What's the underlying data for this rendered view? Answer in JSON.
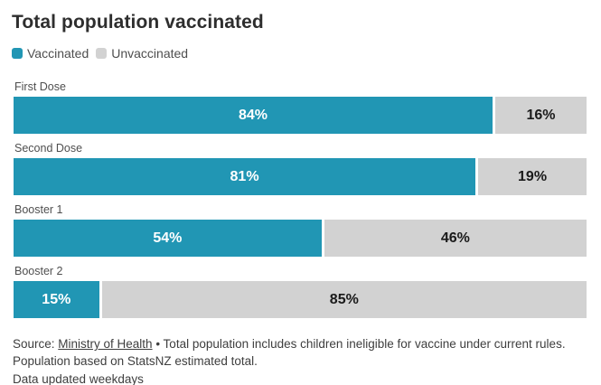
{
  "header": {
    "title": "Total population vaccinated"
  },
  "legend": {
    "items": [
      {
        "label": "Vaccinated",
        "color": "#2196b4"
      },
      {
        "label": "Unvaccinated",
        "color": "#d2d2d2"
      }
    ]
  },
  "chart_data": {
    "type": "bar",
    "orientation": "horizontal-stacked",
    "title": "Total population vaccinated",
    "categories": [
      "First Dose",
      "Second Dose",
      "Booster 1",
      "Booster 2"
    ],
    "series": [
      {
        "name": "Vaccinated",
        "values": [
          84,
          81,
          54,
          15
        ]
      },
      {
        "name": "Unvaccinated",
        "values": [
          16,
          19,
          46,
          85
        ]
      }
    ],
    "xlim": [
      0,
      100
    ],
    "grid": false,
    "legend_position": "top-left",
    "colors": {
      "vaccinated": "#2196b4",
      "unvaccinated": "#d2d2d2"
    },
    "rows": [
      {
        "label": "First Dose",
        "vaccinated": 84,
        "unvaccinated": 16,
        "vaccinated_label": "84%",
        "unvaccinated_label": "16%"
      },
      {
        "label": "Second Dose",
        "vaccinated": 81,
        "unvaccinated": 19,
        "vaccinated_label": "81%",
        "unvaccinated_label": "19%"
      },
      {
        "label": "Booster 1",
        "vaccinated": 54,
        "unvaccinated": 46,
        "vaccinated_label": "54%",
        "unvaccinated_label": "46%"
      },
      {
        "label": "Booster 2",
        "vaccinated": 15,
        "unvaccinated": 85,
        "vaccinated_label": "15%",
        "unvaccinated_label": "85%"
      }
    ]
  },
  "footer": {
    "source_label": "Source: ",
    "source_link": "Ministry of Health",
    "note_line1": " • Total population includes children ineligible for vaccine under current rules.",
    "note_line2": "Population based on StatsNZ estimated total.",
    "updated": "Data updated weekdays"
  }
}
